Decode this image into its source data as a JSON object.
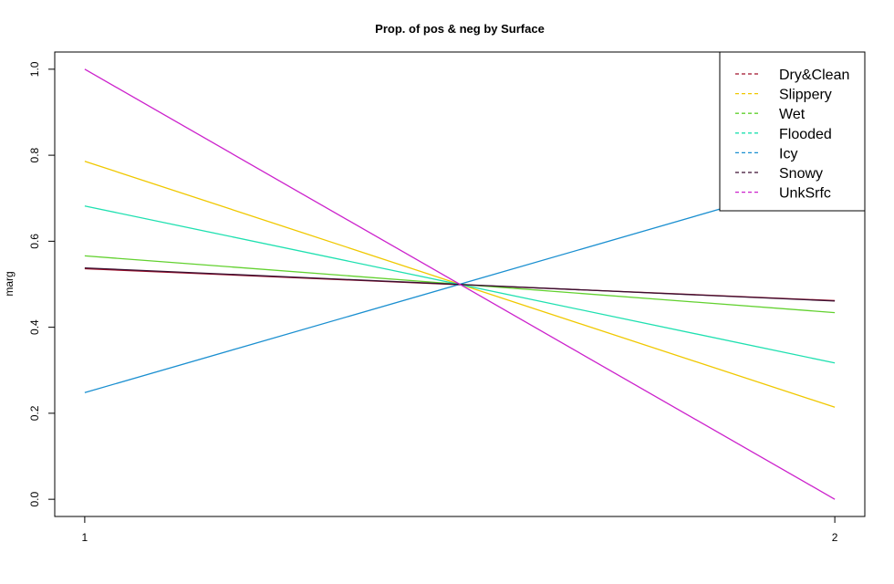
{
  "chart_data": {
    "type": "line",
    "title": "Prop. of pos & neg by Surface",
    "xlabel": "",
    "ylabel": "marg",
    "x": [
      1,
      2
    ],
    "xticks": [
      "1",
      "2"
    ],
    "yticks": [
      "0.0",
      "0.2",
      "0.4",
      "0.6",
      "0.8",
      "1.0"
    ],
    "ylim": [
      -0.04,
      1.04
    ],
    "xlim": [
      0.96,
      2.04
    ],
    "grid": false,
    "legend_position": "top-right",
    "series": [
      {
        "name": "Dry&Clean",
        "color": "#a0102a",
        "values": [
          0.536,
          0.462
        ]
      },
      {
        "name": "Slippery",
        "color": "#f0c800",
        "values": [
          0.786,
          0.214
        ]
      },
      {
        "name": "Wet",
        "color": "#62d12f",
        "values": [
          0.566,
          0.434
        ]
      },
      {
        "name": "Flooded",
        "color": "#1fe0b0",
        "values": [
          0.682,
          0.317
        ]
      },
      {
        "name": "Icy",
        "color": "#1a8fd0",
        "values": [
          0.248,
          0.752
        ]
      },
      {
        "name": "Snowy",
        "color": "#3a0f30",
        "values": [
          0.538,
          0.461
        ]
      },
      {
        "name": "UnkSrfc",
        "color": "#cc22cc",
        "values": [
          1.0,
          0.0
        ]
      }
    ]
  }
}
